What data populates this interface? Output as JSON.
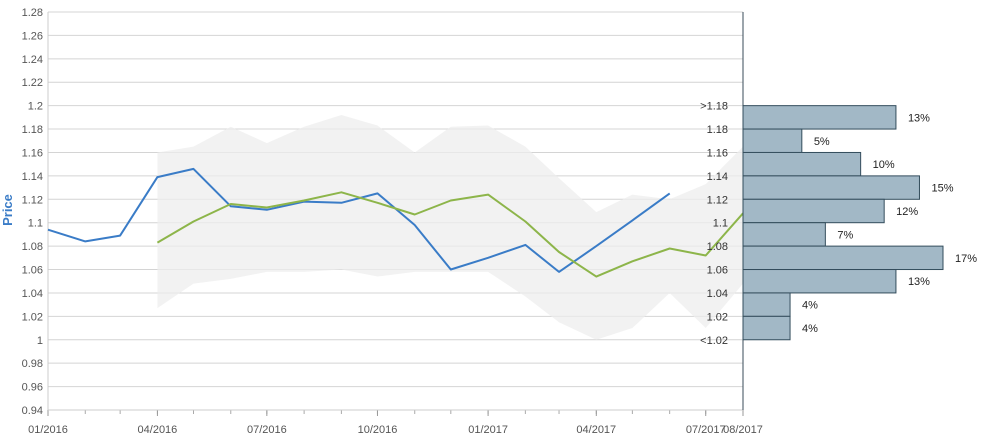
{
  "chart_data": {
    "type": "line",
    "ylabel": "Price",
    "ylim": [
      0.94,
      1.28
    ],
    "yticks": [
      "0.94",
      "0.96",
      "0.98",
      "1",
      "1.02",
      "1.04",
      "1.06",
      "1.08",
      "1.1",
      "1.12",
      "1.14",
      "1.16",
      "1.18",
      "1.2",
      "1.22",
      "1.24",
      "1.26",
      "1.28"
    ],
    "xlim": [
      "2016-01-01",
      "2017-08-01"
    ],
    "xticks": [
      {
        "date": "2016-01-01",
        "label": "01/2016"
      },
      {
        "date": "2016-04-01",
        "label": "04/2016"
      },
      {
        "date": "2016-07-01",
        "label": "07/2016"
      },
      {
        "date": "2016-10-01",
        "label": "10/2016"
      },
      {
        "date": "2017-01-01",
        "label": "01/2017"
      },
      {
        "date": "2017-04-01",
        "label": "04/2017"
      },
      {
        "date": "2017-07-01",
        "label": "07/2017"
      },
      {
        "date": "2017-08-01",
        "label": "08/2017"
      }
    ],
    "grid": true,
    "colors": {
      "blue": "#3a7cc7",
      "green": "#8db54a",
      "band": "#eeeeee",
      "hist": "#a2b8c6",
      "hist_border": "#334d5c"
    },
    "series": [
      {
        "color": "#3a7cc7",
        "points": [
          [
            "2016-01-01",
            1.094
          ],
          [
            "2016-02-01",
            1.084
          ],
          [
            "2016-03-01",
            1.089
          ],
          [
            "2016-04-01",
            1.139
          ],
          [
            "2016-05-01",
            1.146
          ],
          [
            "2016-06-01",
            1.114
          ],
          [
            "2016-07-01",
            1.111
          ],
          [
            "2016-08-01",
            1.118
          ],
          [
            "2016-09-01",
            1.117
          ],
          [
            "2016-10-01",
            1.125
          ],
          [
            "2016-11-01",
            1.098
          ],
          [
            "2016-12-01",
            1.06
          ],
          [
            "2017-01-01",
            1.07
          ],
          [
            "2017-02-01",
            1.081
          ],
          [
            "2017-03-01",
            1.058
          ],
          [
            "2017-04-01",
            1.08
          ],
          [
            "2017-05-01",
            1.102
          ],
          [
            "2017-06-01",
            1.125
          ]
        ]
      },
      {
        "color": "#8db54a",
        "points": [
          [
            "2016-04-01",
            1.083
          ],
          [
            "2016-05-01",
            1.101
          ],
          [
            "2016-06-01",
            1.116
          ],
          [
            "2016-07-01",
            1.113
          ],
          [
            "2016-08-01",
            1.119
          ],
          [
            "2016-09-01",
            1.126
          ],
          [
            "2016-10-01",
            1.117
          ],
          [
            "2016-11-01",
            1.107
          ],
          [
            "2016-12-01",
            1.119
          ],
          [
            "2017-01-01",
            1.124
          ],
          [
            "2017-02-01",
            1.101
          ],
          [
            "2017-03-01",
            1.075
          ],
          [
            "2017-04-01",
            1.054
          ],
          [
            "2017-05-01",
            1.067
          ],
          [
            "2017-06-01",
            1.078
          ],
          [
            "2017-07-01",
            1.072
          ],
          [
            "2017-08-01",
            1.108
          ]
        ]
      }
    ],
    "band": {
      "upper": [
        [
          "2016-04-01",
          1.16
        ],
        [
          "2016-05-01",
          1.165
        ],
        [
          "2016-06-01",
          1.182
        ],
        [
          "2016-07-01",
          1.168
        ],
        [
          "2016-08-01",
          1.182
        ],
        [
          "2016-09-01",
          1.192
        ],
        [
          "2016-10-01",
          1.183
        ],
        [
          "2016-11-01",
          1.16
        ],
        [
          "2016-12-01",
          1.182
        ],
        [
          "2017-01-01",
          1.183
        ],
        [
          "2017-02-01",
          1.165
        ],
        [
          "2017-03-01",
          1.138
        ],
        [
          "2017-04-01",
          1.109
        ],
        [
          "2017-05-01",
          1.124
        ],
        [
          "2017-06-01",
          1.12
        ],
        [
          "2017-07-01",
          1.133
        ],
        [
          "2017-08-01",
          1.165
        ]
      ],
      "lower": [
        [
          "2016-04-01",
          1.027
        ],
        [
          "2016-05-01",
          1.048
        ],
        [
          "2016-06-01",
          1.052
        ],
        [
          "2016-07-01",
          1.058
        ],
        [
          "2016-08-01",
          1.058
        ],
        [
          "2016-09-01",
          1.06
        ],
        [
          "2016-10-01",
          1.054
        ],
        [
          "2016-11-01",
          1.058
        ],
        [
          "2016-12-01",
          1.058
        ],
        [
          "2017-01-01",
          1.058
        ],
        [
          "2017-02-01",
          1.037
        ],
        [
          "2017-03-01",
          1.015
        ],
        [
          "2017-04-01",
          1.0
        ],
        [
          "2017-05-01",
          1.01
        ],
        [
          "2017-06-01",
          1.04
        ],
        [
          "2017-07-01",
          1.01
        ],
        [
          "2017-08-01",
          1.048
        ]
      ]
    },
    "histogram": [
      {
        "label": ">1.18",
        "low": 1.18,
        "high": 1.2,
        "percent": 13
      },
      {
        "label": "1.18",
        "low": 1.16,
        "high": 1.18,
        "percent": 5
      },
      {
        "label": "1.16",
        "low": 1.14,
        "high": 1.16,
        "percent": 10
      },
      {
        "label": "1.14",
        "low": 1.12,
        "high": 1.14,
        "percent": 15
      },
      {
        "label": "1.12",
        "low": 1.1,
        "high": 1.12,
        "percent": 12
      },
      {
        "label": "1.1",
        "low": 1.08,
        "high": 1.1,
        "percent": 7
      },
      {
        "label": "1.08",
        "low": 1.06,
        "high": 1.08,
        "percent": 17
      },
      {
        "label": "1.06",
        "low": 1.04,
        "high": 1.06,
        "percent": 13
      },
      {
        "label": "1.04",
        "low": 1.02,
        "high": 1.04,
        "percent": 4
      },
      {
        "label": "1.02",
        "low": 1.0,
        "high": 1.02,
        "percent": 4
      },
      {
        "label": "<1.02",
        "low": null,
        "high": null,
        "percent": null
      }
    ]
  }
}
